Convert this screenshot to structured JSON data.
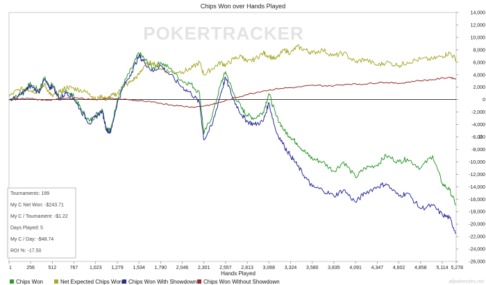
{
  "watermark": "POKERTRACKER",
  "copyright": "allpokersites.net",
  "chart_data": {
    "type": "line",
    "title": "Chips Won over Hands Played",
    "xlabel": "Hands Played",
    "ylabel": "",
    "xlim": [
      1,
      5278
    ],
    "ylim": [
      -26000,
      14000
    ],
    "x_ticks": [
      "1",
      "256",
      "512",
      "767",
      "1,023",
      "1,279",
      "1,534",
      "1,790",
      "2,046",
      "2,301",
      "2,557",
      "2,813",
      "3,068",
      "3,324",
      "3,580",
      "3,835",
      "4,091",
      "4,347",
      "4,602",
      "4,858",
      "5,114",
      "5,278"
    ],
    "x_tick_values": [
      1,
      256,
      512,
      767,
      1023,
      1279,
      1534,
      1790,
      2046,
      2301,
      2557,
      2813,
      3068,
      3324,
      3580,
      3835,
      4091,
      4347,
      4602,
      4858,
      5114,
      5278
    ],
    "y_ticks": [
      "14,000",
      "12,000",
      "10,000",
      "8,000",
      "6,000",
      "4,000",
      "2,000",
      "0",
      "-2,000",
      "-4,000",
      "-6,000",
      "-8,000",
      "-10,000",
      "-12,000",
      "-14,000",
      "-16,000",
      "-18,000",
      "-20,000",
      "-22,000",
      "-24,000",
      "-26,000"
    ],
    "y_tick_values": [
      14000,
      12000,
      10000,
      8000,
      6000,
      4000,
      2000,
      0,
      -2000,
      -4000,
      -6000,
      -8000,
      -10000,
      -12000,
      -14000,
      -16000,
      -18000,
      -20000,
      -22000,
      -24000,
      -26000
    ],
    "grid": false,
    "zero_line": true,
    "legend": "bottom",
    "series": [
      {
        "name": "Chips Won",
        "color": "#2a9a2a",
        "x": [
          1,
          100,
          200,
          256,
          350,
          420,
          480,
          512,
          600,
          680,
          767,
          850,
          950,
          1023,
          1100,
          1150,
          1200,
          1279,
          1350,
          1450,
          1534,
          1600,
          1700,
          1790,
          1900,
          2046,
          2150,
          2250,
          2301,
          2400,
          2500,
          2557,
          2650,
          2750,
          2813,
          2900,
          3000,
          3068,
          3150,
          3250,
          3324,
          3400,
          3500,
          3580,
          3700,
          3835,
          3950,
          4091,
          4200,
          4347,
          4450,
          4602,
          4700,
          4858,
          5000,
          5114,
          5200,
          5278
        ],
        "y": [
          0,
          500,
          1800,
          2500,
          1500,
          3500,
          2000,
          2500,
          300,
          1500,
          500,
          -1500,
          -3500,
          -2500,
          -1500,
          -4500,
          -5000,
          0,
          2500,
          5000,
          7500,
          6500,
          5000,
          6000,
          5000,
          3000,
          2500,
          1000,
          -5500,
          -2500,
          2500,
          4500,
          1000,
          -1500,
          -2500,
          -3000,
          -2000,
          1000,
          -2500,
          -5000,
          -6000,
          -7000,
          -8500,
          -9500,
          -10000,
          -11500,
          -10000,
          -12500,
          -11000,
          -10500,
          -9000,
          -10000,
          -9500,
          -11000,
          -9000,
          -13500,
          -14500,
          -17000
        ]
      },
      {
        "name": "Net Expected Chips Won",
        "color": "#a8aa2a",
        "x": [
          1,
          100,
          200,
          256,
          350,
          420,
          480,
          512,
          600,
          680,
          767,
          850,
          950,
          1023,
          1100,
          1150,
          1200,
          1279,
          1350,
          1450,
          1534,
          1600,
          1700,
          1790,
          1900,
          2046,
          2150,
          2250,
          2301,
          2400,
          2500,
          2557,
          2650,
          2750,
          2813,
          2900,
          3000,
          3068,
          3150,
          3250,
          3324,
          3400,
          3500,
          3580,
          3700,
          3835,
          3950,
          4091,
          4200,
          4347,
          4450,
          4602,
          4700,
          4858,
          5000,
          5114,
          5200,
          5278
        ],
        "y": [
          500,
          1500,
          1800,
          1500,
          1200,
          2500,
          1000,
          500,
          1200,
          2000,
          1800,
          1500,
          1000,
          0,
          500,
          0,
          500,
          1000,
          2000,
          3000,
          4000,
          5500,
          6000,
          5000,
          4500,
          4500,
          5000,
          6000,
          4000,
          5000,
          6000,
          5500,
          6500,
          7000,
          6000,
          6500,
          7500,
          7000,
          6500,
          8000,
          7500,
          8500,
          8000,
          7500,
          8000,
          7000,
          7500,
          6000,
          6500,
          5500,
          6000,
          5500,
          6000,
          6500,
          6500,
          7000,
          7500,
          6500
        ]
      },
      {
        "name": "Chips Won With Showdown",
        "color": "#2a2a9a",
        "x": [
          1,
          100,
          200,
          256,
          350,
          420,
          480,
          512,
          600,
          680,
          767,
          850,
          950,
          1023,
          1100,
          1150,
          1200,
          1279,
          1350,
          1450,
          1534,
          1600,
          1700,
          1790,
          1900,
          2046,
          2150,
          2250,
          2301,
          2400,
          2500,
          2557,
          2650,
          2750,
          2813,
          2900,
          3000,
          3068,
          3150,
          3250,
          3324,
          3400,
          3500,
          3580,
          3700,
          3835,
          3950,
          4091,
          4200,
          4347,
          4450,
          4602,
          4700,
          4858,
          5000,
          5114,
          5200,
          5278
        ],
        "y": [
          0,
          300,
          1500,
          2200,
          1200,
          3200,
          1800,
          2200,
          0,
          1200,
          200,
          -1800,
          -3800,
          -2800,
          -1800,
          -4800,
          -5300,
          -500,
          2000,
          4500,
          7000,
          6000,
          4500,
          5500,
          4000,
          2000,
          1000,
          -500,
          -6500,
          -4000,
          1000,
          3500,
          0,
          -2500,
          -3500,
          -4000,
          -3500,
          -500,
          -5000,
          -7500,
          -9000,
          -10500,
          -12500,
          -14000,
          -14500,
          -15500,
          -14500,
          -16500,
          -15000,
          -14000,
          -13500,
          -15500,
          -15000,
          -17500,
          -17000,
          -18500,
          -19000,
          -21500
        ]
      },
      {
        "name": "Chips Won Without Showdown",
        "color": "#9a2a2a",
        "x": [
          1,
          200,
          400,
          600,
          800,
          1000,
          1200,
          1400,
          1600,
          1800,
          2000,
          2200,
          2400,
          2600,
          2800,
          3000,
          3200,
          3400,
          3600,
          3800,
          4000,
          4200,
          4400,
          4600,
          4800,
          5000,
          5200,
          5278
        ],
        "y": [
          0,
          200,
          -100,
          100,
          300,
          0,
          200,
          0,
          -300,
          -600,
          -1000,
          -1200,
          -800,
          0,
          800,
          1400,
          1800,
          2000,
          2300,
          2200,
          2500,
          2500,
          2800,
          2600,
          3000,
          3200,
          3600,
          3300
        ]
      }
    ],
    "stats_box": [
      "Tournaments: 199",
      "My C Net Won: -$243.71",
      "My C / Tournament: -$1.22",
      "Days Played: 5",
      "My C / Day: -$48.74",
      "ROI %: -17.50"
    ]
  }
}
